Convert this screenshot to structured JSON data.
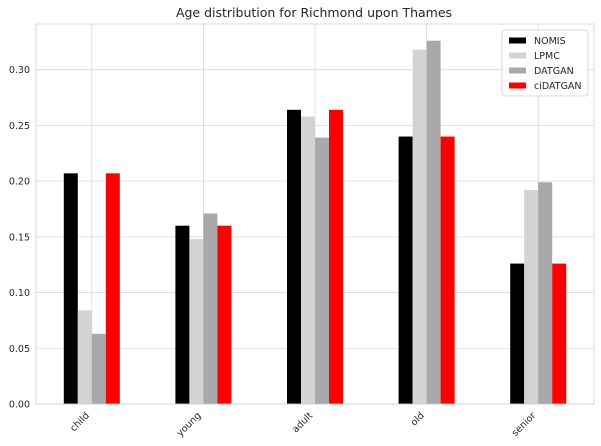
{
  "chart_data": {
    "type": "bar",
    "title": "Age distribution for Richmond upon Thames",
    "xlabel": "",
    "ylabel": "",
    "categories": [
      "child",
      "young",
      "adult",
      "old",
      "senior"
    ],
    "series": [
      {
        "name": "NOMIS",
        "color": "#000000",
        "values": [
          0.207,
          0.16,
          0.264,
          0.24,
          0.126
        ]
      },
      {
        "name": "LPMC",
        "color": "#d3d3d3",
        "values": [
          0.084,
          0.148,
          0.258,
          0.318,
          0.192
        ]
      },
      {
        "name": "DATGAN",
        "color": "#a9a9a9",
        "values": [
          0.063,
          0.171,
          0.239,
          0.326,
          0.199
        ]
      },
      {
        "name": "ciDATGAN",
        "color": "#ff0000",
        "values": [
          0.207,
          0.16,
          0.264,
          0.24,
          0.126
        ]
      }
    ],
    "ylim": [
      0,
      0.341
    ],
    "yticks": [
      "0.00",
      "0.05",
      "0.10",
      "0.15",
      "0.20",
      "0.25",
      "0.30"
    ],
    "grid": true,
    "legend_position": "top-right",
    "x_tick_rotation": 45
  }
}
